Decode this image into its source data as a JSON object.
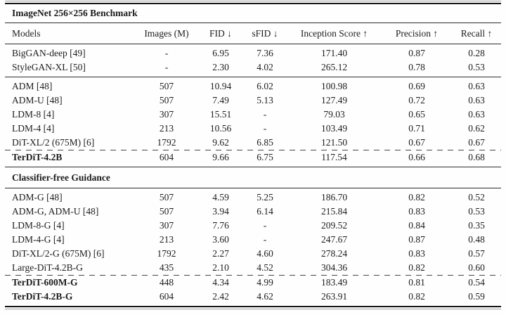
{
  "title": "ImageNet 256×256 Benchmark",
  "section2_title": "Classifier-free Guidance",
  "colors": {
    "text": "#1c1c1c",
    "rule": "#2b2b2b",
    "background": "#fefefe"
  },
  "columns": [
    "Models",
    "Images (M)",
    "FID ↓",
    "sFID ↓",
    "Inception Score ↑",
    "Precision ↑",
    "Recall ↑"
  ],
  "g1": [
    [
      "BigGAN-deep [49]",
      "-",
      "6.95",
      "7.36",
      "171.40",
      "0.87",
      "0.28"
    ],
    [
      "StyleGAN-XL [50]",
      "-",
      "2.30",
      "4.02",
      "265.12",
      "0.78",
      "0.53"
    ]
  ],
  "g2": [
    [
      "ADM [48]",
      "507",
      "10.94",
      "6.02",
      "100.98",
      "0.69",
      "0.63"
    ],
    [
      "ADM-U [48]",
      "507",
      "7.49",
      "5.13",
      "127.49",
      "0.72",
      "0.63"
    ],
    [
      "LDM-8 [4]",
      "307",
      "15.51",
      "-",
      "79.03",
      "0.65",
      "0.63"
    ],
    [
      "LDM-4 [4]",
      "213",
      "10.56",
      "-",
      "103.49",
      "0.71",
      "0.62"
    ],
    [
      "DiT-XL/2 (675M) [6]",
      "1792",
      "9.62",
      "6.85",
      "121.50",
      "0.67",
      "0.67"
    ]
  ],
  "g2b": [
    [
      "TerDiT-4.2B",
      "604",
      "9.66",
      "6.75",
      "117.54",
      "0.66",
      "0.68"
    ]
  ],
  "g3": [
    [
      "ADM-G [48]",
      "507",
      "4.59",
      "5.25",
      "186.70",
      "0.82",
      "0.52"
    ],
    [
      "ADM-G, ADM-U [48]",
      "507",
      "3.94",
      "6.14",
      "215.84",
      "0.83",
      "0.53"
    ],
    [
      "LDM-8-G [4]",
      "307",
      "7.76",
      "-",
      "209.52",
      "0.84",
      "0.35"
    ],
    [
      "LDM-4-G [4]",
      "213",
      "3.60",
      "-",
      "247.67",
      "0.87",
      "0.48"
    ],
    [
      "DiT-XL/2-G (675M) [6]",
      "1792",
      "2.27",
      "4.60",
      "278.24",
      "0.83",
      "0.57"
    ],
    [
      "Large-DiT-4.2B-G",
      "435",
      "2.10",
      "4.52",
      "304.36",
      "0.82",
      "0.60"
    ]
  ],
  "g3b": [
    [
      "TerDiT-600M-G",
      "448",
      "4.34",
      "4.99",
      "183.49",
      "0.81",
      "0.54"
    ],
    [
      "TerDiT-4.2B-G",
      "604",
      "2.42",
      "4.62",
      "263.91",
      "0.82",
      "0.59"
    ]
  ]
}
